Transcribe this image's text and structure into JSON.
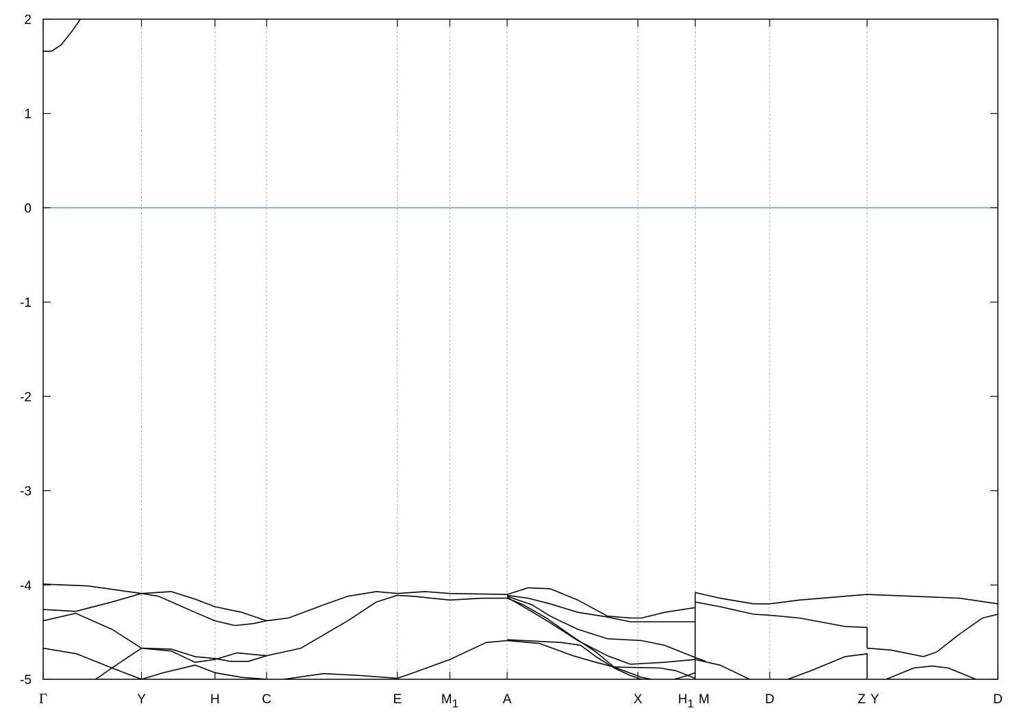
{
  "chart_data": {
    "type": "line",
    "title": "",
    "xlabel": "",
    "ylabel": "",
    "ylim": [
      -5,
      2
    ],
    "xlim": [
      0,
      1
    ],
    "yticks": [
      -5,
      -4,
      -3,
      -2,
      -1,
      0,
      1,
      2
    ],
    "ytick_labels": [
      "-5",
      "-4",
      "-3",
      "-2",
      "-1",
      "0",
      "1",
      "2"
    ],
    "xticks": [
      {
        "k": 0.0,
        "labels": [
          {
            "text": "Γ",
            "sub": ""
          }
        ]
      },
      {
        "k": 0.103,
        "labels": [
          {
            "text": "Y",
            "sub": ""
          }
        ]
      },
      {
        "k": 0.18,
        "labels": [
          {
            "text": "H",
            "sub": ""
          }
        ]
      },
      {
        "k": 0.234,
        "labels": [
          {
            "text": "C",
            "sub": ""
          }
        ]
      },
      {
        "k": 0.371,
        "labels": [
          {
            "text": "E",
            "sub": ""
          }
        ]
      },
      {
        "k": 0.426,
        "labels": [
          {
            "text": "M",
            "sub": "1"
          }
        ]
      },
      {
        "k": 0.486,
        "labels": [
          {
            "text": "A",
            "sub": ""
          }
        ]
      },
      {
        "k": 0.623,
        "labels": [
          {
            "text": "X",
            "sub": ""
          }
        ]
      },
      {
        "k": 0.683,
        "labels": [
          {
            "text": "H",
            "sub": "1"
          },
          {
            "text": "M",
            "sub": ""
          }
        ]
      },
      {
        "k": 0.761,
        "labels": [
          {
            "text": "D",
            "sub": ""
          }
        ]
      },
      {
        "k": 0.863,
        "labels": [
          {
            "text": "Z",
            "sub": ""
          },
          {
            "text": "Y",
            "sub": ""
          }
        ]
      },
      {
        "k": 1.0,
        "labels": [
          {
            "text": "D",
            "sub": ""
          }
        ]
      }
    ],
    "grid": "vertical dashed at high-symmetry points",
    "fermi_level": {
      "value": 0,
      "color": "#4ba6d8"
    },
    "band_color": "#000000",
    "bands": [
      [
        [
          0,
          1.66
        ],
        [
          0.009,
          1.66
        ],
        [
          0.019,
          1.73
        ],
        [
          0.03,
          1.87
        ],
        [
          0.039,
          2.0
        ]
      ],
      [
        [
          0,
          -3.99
        ],
        [
          0.047,
          -4.01
        ],
        [
          0.103,
          -4.09
        ],
        [
          0.134,
          -4.07
        ],
        [
          0.159,
          -4.15
        ],
        [
          0.18,
          -4.23
        ],
        [
          0.208,
          -4.29
        ],
        [
          0.234,
          -4.38
        ]
      ],
      [
        [
          0,
          -4.26
        ],
        [
          0.034,
          -4.28
        ],
        [
          0.072,
          -4.18
        ],
        [
          0.103,
          -4.09
        ],
        [
          0.121,
          -4.12
        ],
        [
          0.159,
          -4.29
        ],
        [
          0.18,
          -4.38
        ],
        [
          0.201,
          -4.43
        ],
        [
          0.22,
          -4.41
        ],
        [
          0.234,
          -4.38
        ],
        [
          0.257,
          -4.35
        ],
        [
          0.294,
          -4.21
        ],
        [
          0.319,
          -4.12
        ],
        [
          0.349,
          -4.07
        ],
        [
          0.371,
          -4.09
        ],
        [
          0.4,
          -4.07
        ],
        [
          0.426,
          -4.09
        ],
        [
          0.486,
          -4.1
        ]
      ],
      [
        [
          0,
          -4.38
        ],
        [
          0.034,
          -4.3
        ],
        [
          0.072,
          -4.47
        ],
        [
          0.103,
          -4.67
        ],
        [
          0.134,
          -4.68
        ],
        [
          0.159,
          -4.76
        ],
        [
          0.18,
          -4.78
        ],
        [
          0.196,
          -4.81
        ],
        [
          0.215,
          -4.81
        ],
        [
          0.234,
          -4.75
        ],
        [
          0.27,
          -4.67
        ],
        [
          0.319,
          -4.38
        ],
        [
          0.349,
          -4.18
        ],
        [
          0.371,
          -4.11
        ],
        [
          0.388,
          -4.12
        ],
        [
          0.426,
          -4.16
        ],
        [
          0.46,
          -4.14
        ],
        [
          0.486,
          -4.14
        ]
      ],
      [
        [
          0,
          -4.67
        ],
        [
          0.035,
          -4.73
        ],
        [
          0.072,
          -4.88
        ],
        [
          0.103,
          -5.0
        ]
      ],
      [
        [
          0.055,
          -5.0
        ],
        [
          0.072,
          -4.88
        ],
        [
          0.103,
          -4.67
        ],
        [
          0.134,
          -4.7
        ],
        [
          0.159,
          -4.82
        ],
        [
          0.18,
          -4.79
        ],
        [
          0.203,
          -4.72
        ],
        [
          0.234,
          -4.75
        ]
      ],
      [
        [
          0.103,
          -5.0
        ],
        [
          0.126,
          -4.93
        ],
        [
          0.159,
          -4.85
        ],
        [
          0.18,
          -4.93
        ],
        [
          0.208,
          -4.98
        ],
        [
          0.234,
          -5.0
        ]
      ],
      [
        [
          0.252,
          -5.0
        ],
        [
          0.294,
          -4.94
        ],
        [
          0.332,
          -4.96
        ],
        [
          0.371,
          -4.99
        ],
        [
          0.388,
          -4.93
        ],
        [
          0.426,
          -4.79
        ],
        [
          0.464,
          -4.61
        ],
        [
          0.486,
          -4.59
        ]
      ],
      [
        [
          0.486,
          -4.1
        ],
        [
          0.508,
          -4.03
        ],
        [
          0.531,
          -4.04
        ],
        [
          0.56,
          -4.16
        ],
        [
          0.591,
          -4.33
        ],
        [
          0.615,
          -4.35
        ],
        [
          0.627,
          -4.35
        ],
        [
          0.651,
          -4.29
        ],
        [
          0.683,
          -4.24
        ]
      ],
      [
        [
          0.486,
          -4.11
        ],
        [
          0.508,
          -4.14
        ],
        [
          0.531,
          -4.2
        ],
        [
          0.56,
          -4.29
        ],
        [
          0.591,
          -4.34
        ],
        [
          0.615,
          -4.39
        ],
        [
          0.683,
          -4.39
        ]
      ],
      [
        [
          0.486,
          -4.12
        ],
        [
          0.512,
          -4.21
        ],
        [
          0.531,
          -4.33
        ],
        [
          0.56,
          -4.47
        ],
        [
          0.591,
          -4.57
        ],
        [
          0.627,
          -4.59
        ],
        [
          0.651,
          -4.64
        ],
        [
          0.683,
          -4.77
        ],
        [
          0.694,
          -4.81
        ]
      ],
      [
        [
          0.486,
          -4.13
        ],
        [
          0.508,
          -4.26
        ],
        [
          0.531,
          -4.4
        ],
        [
          0.56,
          -4.59
        ],
        [
          0.591,
          -4.75
        ],
        [
          0.615,
          -4.84
        ],
        [
          0.651,
          -4.82
        ],
        [
          0.683,
          -4.79
        ]
      ],
      [
        [
          0.486,
          -4.14
        ],
        [
          0.503,
          -4.21
        ],
        [
          0.527,
          -4.35
        ],
        [
          0.555,
          -4.55
        ],
        [
          0.579,
          -4.71
        ],
        [
          0.598,
          -4.87
        ],
        [
          0.627,
          -4.98
        ],
        [
          0.637,
          -5.0
        ]
      ],
      [
        [
          0.486,
          -4.59
        ],
        [
          0.52,
          -4.62
        ],
        [
          0.555,
          -4.75
        ],
        [
          0.579,
          -4.82
        ],
        [
          0.598,
          -4.87
        ],
        [
          0.646,
          -4.88
        ],
        [
          0.663,
          -4.91
        ],
        [
          0.683,
          -4.99
        ]
      ],
      [
        [
          0.486,
          -4.58
        ],
        [
          0.543,
          -4.61
        ],
        [
          0.563,
          -4.64
        ],
        [
          0.579,
          -4.76
        ],
        [
          0.598,
          -4.88
        ],
        [
          0.615,
          -4.96
        ],
        [
          0.627,
          -5.0
        ]
      ],
      [
        [
          0.661,
          -5.0
        ],
        [
          0.675,
          -4.96
        ],
        [
          0.683,
          -4.93
        ]
      ],
      [
        [
          0.683,
          -4.08
        ],
        [
          0.683,
          -5.0
        ]
      ],
      [
        [
          0.683,
          -4.08
        ],
        [
          0.709,
          -4.14
        ],
        [
          0.744,
          -4.2
        ],
        [
          0.761,
          -4.2
        ],
        [
          0.792,
          -4.16
        ],
        [
          0.863,
          -4.1
        ],
        [
          0.912,
          -4.12
        ],
        [
          0.96,
          -4.14
        ],
        [
          1.0,
          -4.2
        ]
      ],
      [
        [
          0.683,
          -4.18
        ],
        [
          0.709,
          -4.23
        ],
        [
          0.744,
          -4.31
        ],
        [
          0.761,
          -4.32
        ],
        [
          0.792,
          -4.35
        ],
        [
          0.84,
          -4.44
        ],
        [
          0.863,
          -4.45
        ],
        [
          0.863,
          -4.67
        ],
        [
          0.888,
          -4.69
        ],
        [
          0.922,
          -4.76
        ],
        [
          0.936,
          -4.71
        ],
        [
          0.96,
          -4.52
        ],
        [
          0.984,
          -4.35
        ],
        [
          1.0,
          -4.31
        ]
      ],
      [
        [
          0.683,
          -4.79
        ],
        [
          0.709,
          -4.85
        ],
        [
          0.74,
          -5.0
        ]
      ],
      [
        [
          0.78,
          -5.0
        ],
        [
          0.804,
          -4.91
        ],
        [
          0.84,
          -4.76
        ],
        [
          0.863,
          -4.73
        ],
        [
          0.863,
          -5.0
        ]
      ],
      [
        [
          0.883,
          -5.0
        ],
        [
          0.912,
          -4.88
        ],
        [
          0.931,
          -4.86
        ],
        [
          0.948,
          -4.88
        ],
        [
          0.977,
          -5.0
        ]
      ]
    ]
  }
}
